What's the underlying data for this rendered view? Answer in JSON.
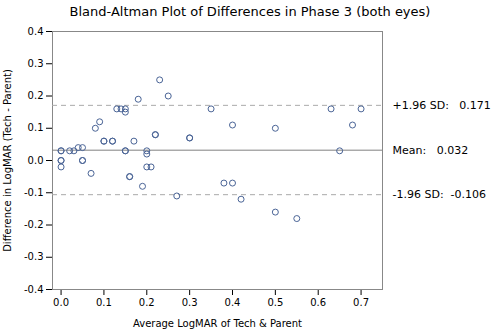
{
  "chart_data": {
    "type": "scatter",
    "title": "Bland-Altman Plot of Differences in Phase 3 (both eyes)",
    "xlabel": "Average LogMAR of Tech & Parent",
    "ylabel": "Difference in LogMAR (Tech - Parent)",
    "xlim": [
      -0.02,
      0.75
    ],
    "ylim": [
      -0.4,
      0.4
    ],
    "xticks": [
      {
        "value": 0.0,
        "label": "0.0"
      },
      0.1,
      0.2,
      0.3,
      0.4,
      0.5,
      0.6,
      0.7
    ],
    "yticks": [
      -0.4,
      -0.3,
      -0.2,
      -0.1,
      {
        "value": 0.0,
        "label": "0.0"
      },
      0.1,
      0.2,
      0.3,
      0.4
    ],
    "color": "#4a6496",
    "marker": "open_circle",
    "grid": false,
    "x": [
      0.0,
      0.0,
      0.0,
      0.0,
      0.0,
      0.02,
      0.03,
      0.04,
      0.05,
      0.05,
      0.05,
      0.07,
      0.08,
      0.09,
      0.1,
      0.1,
      0.12,
      0.12,
      0.13,
      0.14,
      0.15,
      0.15,
      0.15,
      0.15,
      0.16,
      0.16,
      0.17,
      0.18,
      0.19,
      0.2,
      0.2,
      0.2,
      0.21,
      0.22,
      0.22,
      0.23,
      0.25,
      0.27,
      0.3,
      0.3,
      0.35,
      0.38,
      0.4,
      0.4,
      0.42,
      0.5,
      0.5,
      0.55,
      0.63,
      0.65,
      0.68,
      0.7
    ],
    "values": [
      0.0,
      0.0,
      -0.02,
      0.03,
      0.03,
      0.03,
      0.03,
      0.04,
      0.04,
      0.0,
      0.0,
      -0.04,
      0.1,
      0.12,
      0.06,
      0.06,
      0.06,
      0.06,
      0.16,
      0.16,
      0.15,
      0.16,
      0.03,
      0.03,
      -0.05,
      -0.05,
      0.06,
      0.19,
      -0.08,
      0.03,
      0.02,
      -0.02,
      -0.02,
      0.08,
      0.08,
      0.25,
      0.2,
      -0.11,
      0.07,
      0.07,
      0.16,
      -0.07,
      -0.07,
      0.11,
      -0.12,
      0.1,
      -0.16,
      -0.18,
      0.16,
      0.03,
      0.11,
      0.16
    ],
    "annotations": [
      {
        "y": 0.171,
        "label": "+1.96 SD:   0.171",
        "color": "#aaaaaa",
        "line_style": "dashed"
      },
      {
        "y": 0.032,
        "label": "Mean:   0.032",
        "color": "#808080",
        "line_style": "solid"
      },
      {
        "y": -0.106,
        "label": "-1.96 SD:  -0.106",
        "color": "#aaaaaa",
        "line_style": "dashed"
      }
    ]
  }
}
